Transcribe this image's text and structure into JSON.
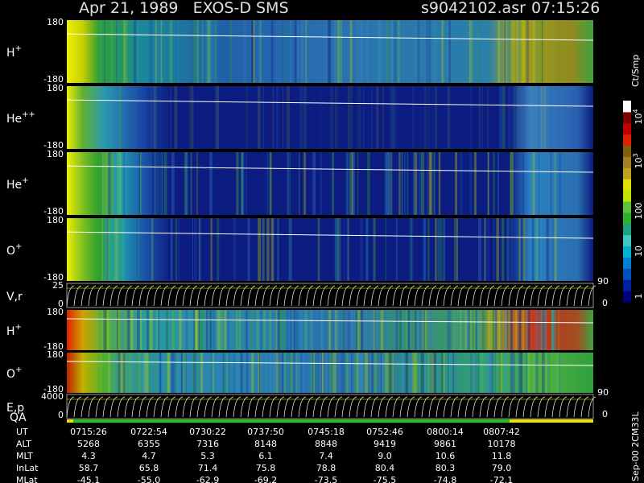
{
  "header": {
    "title": "Apr 21, 1989   EXOS-D SMS",
    "file": "s9042102.asr",
    "time": "07:15:26"
  },
  "panels": [
    {
      "ion": "H",
      "charge": "+",
      "ytop": "180",
      "ybottom": "-180"
    },
    {
      "ion": "He",
      "charge": "++",
      "ytop": "180",
      "ybottom": "-180"
    },
    {
      "ion": "He",
      "charge": "+",
      "ytop": "180",
      "ybottom": "-180"
    },
    {
      "ion": "O",
      "charge": "+",
      "ytop": "180",
      "ybottom": "-180"
    },
    {
      "ion": "V,r",
      "ytop": "25",
      "ybottom": "0",
      "rtop": "90",
      "rbottom": "0"
    },
    {
      "ion": "H",
      "charge": "+",
      "ytop": "180",
      "ybottom": "-180"
    },
    {
      "ion": "O",
      "charge": "+",
      "ytop": "180",
      "ybottom": "-180"
    },
    {
      "ion": "E,p",
      "ytop": "4000",
      "ybottom": "0",
      "rtop": "90",
      "rbottom": "0"
    }
  ],
  "qa_label": "QA",
  "colorbar": {
    "unit": "Ct/Smp",
    "labels": [
      {
        "base": "10",
        "exp": "4"
      },
      {
        "base": "10",
        "exp": "3"
      },
      {
        "base": "100"
      },
      {
        "base": "10"
      },
      {
        "base": "1"
      }
    ]
  },
  "footer": {
    "rows": [
      {
        "label": "UT",
        "values": [
          "0715:26",
          "0722:54",
          "0730:22",
          "0737:50",
          "0745:18",
          "0752:46",
          "0800:14",
          "0807:42"
        ]
      },
      {
        "label": "ALT",
        "values": [
          "5268",
          "6355",
          "7316",
          "8148",
          "8848",
          "9419",
          "9861",
          "10178"
        ]
      },
      {
        "label": "MLT",
        "values": [
          "4.3",
          "4.7",
          "5.3",
          "6.1",
          "7.4",
          "9.0",
          "10.6",
          "11.8"
        ]
      },
      {
        "label": "InLat",
        "values": [
          "58.7",
          "65.8",
          "71.4",
          "75.8",
          "78.8",
          "80.4",
          "80.3",
          "79.0"
        ]
      },
      {
        "label": "MLat",
        "values": [
          "-45.1",
          "-55.0",
          "-62.9",
          "-69.2",
          "-73.5",
          "-75.5",
          "-74.8",
          "-72.1"
        ]
      }
    ]
  },
  "side_note": "Sep-00 2CM33L"
}
